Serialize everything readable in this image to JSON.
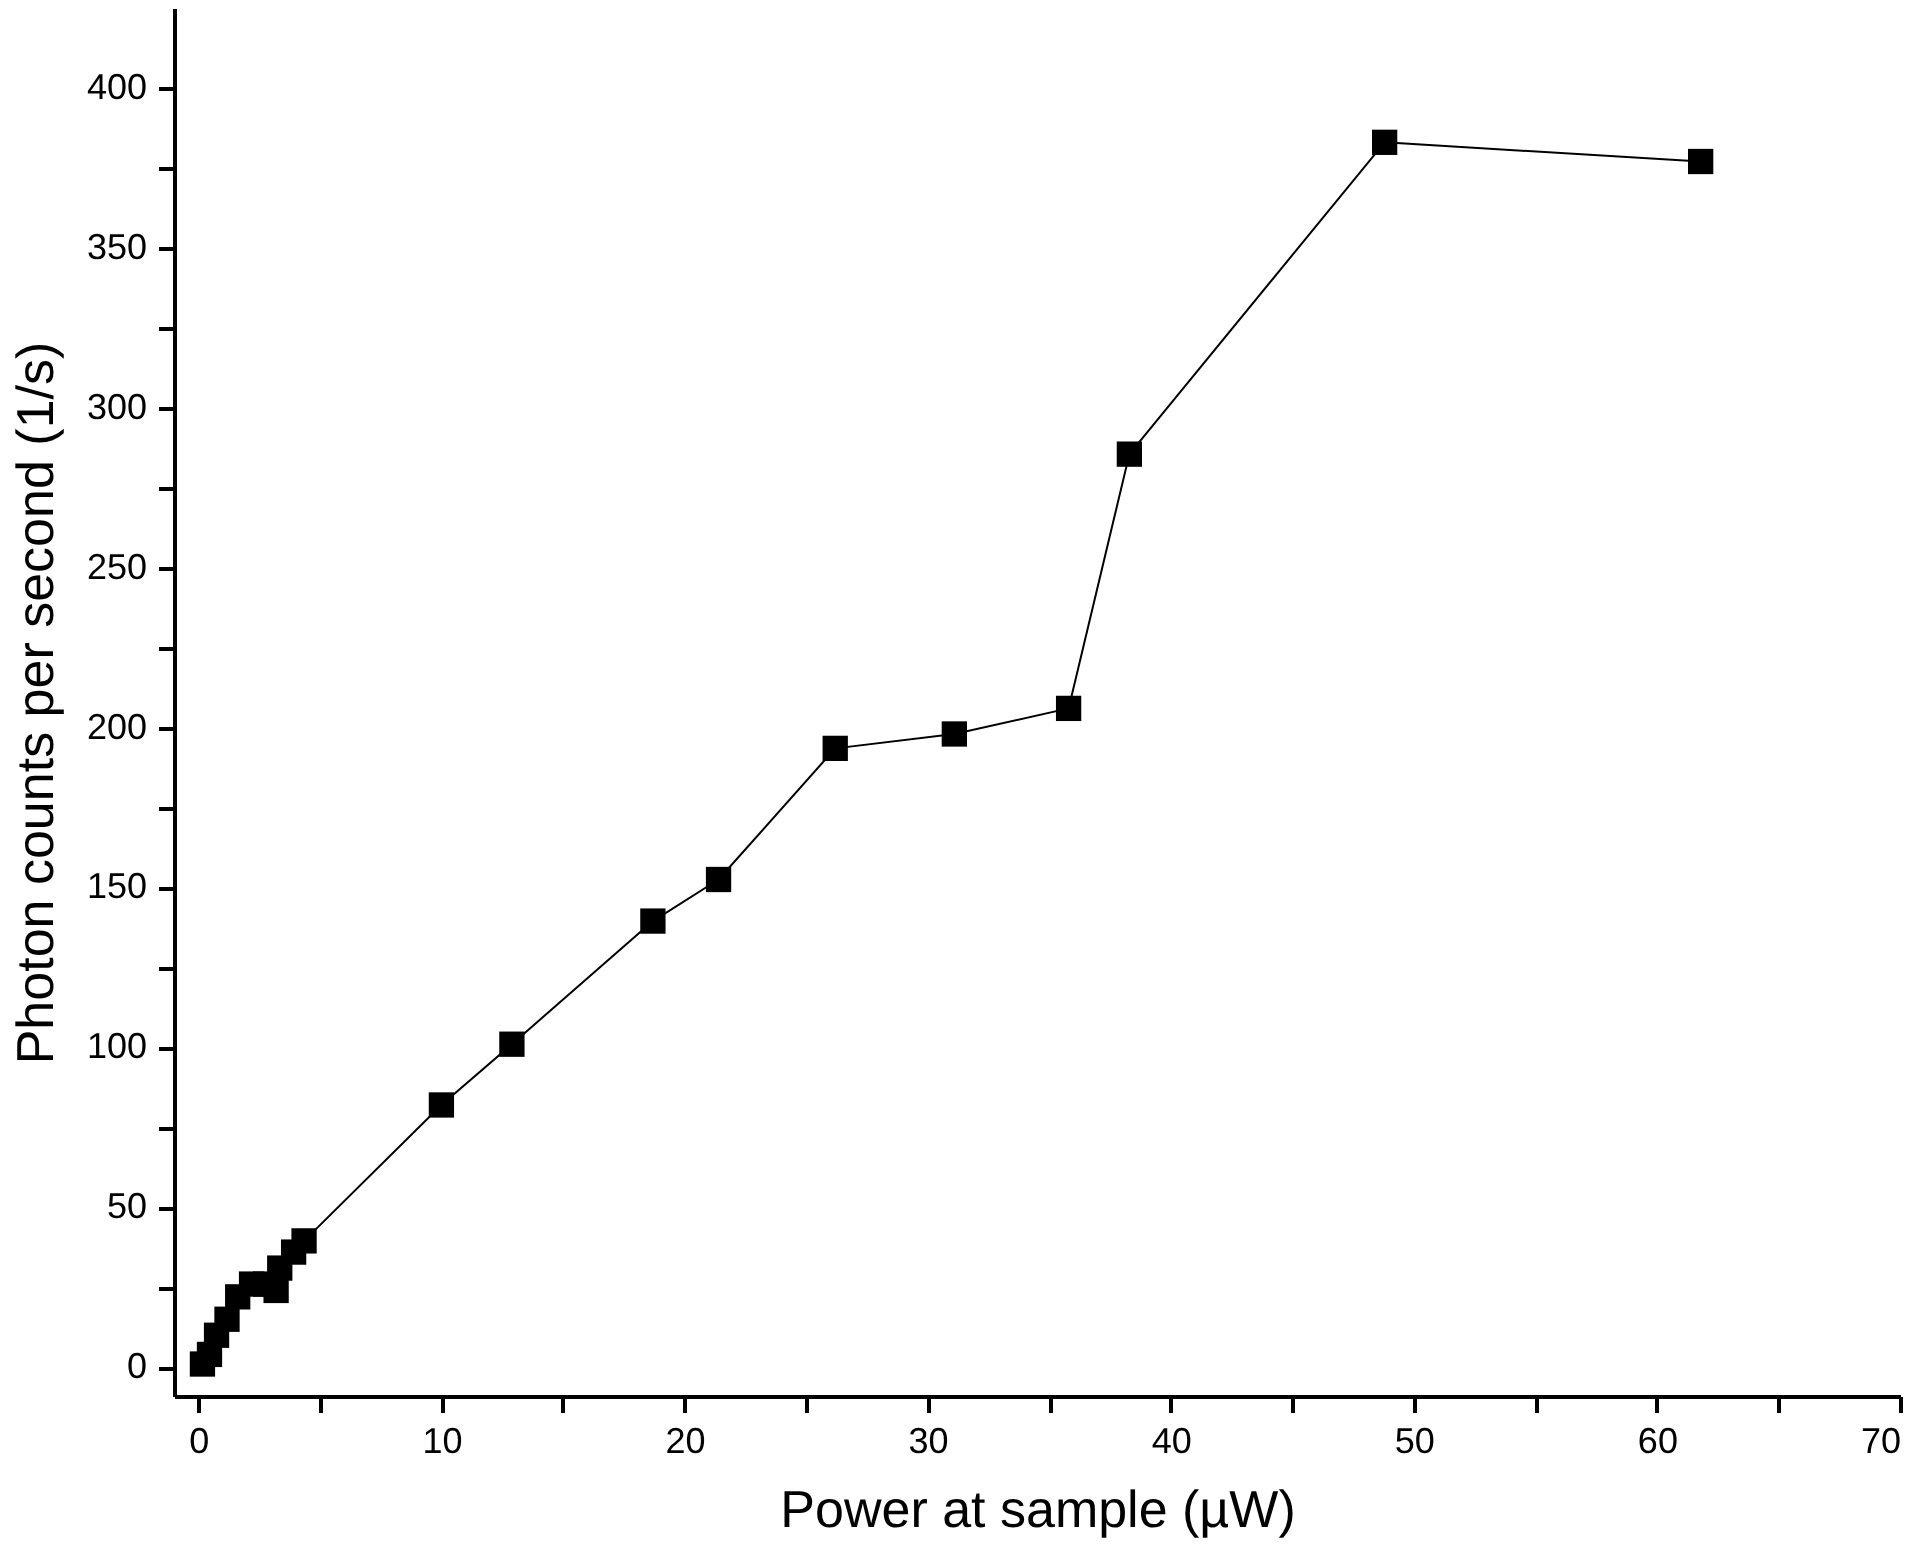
{
  "chart_data": {
    "type": "line",
    "xlabel": "Power at sample (µW)",
    "ylabel": "Photon counts per second (1/s)",
    "x": [
      0.17,
      0.46,
      0.75,
      1.18,
      1.62,
      2.19,
      2.77,
      3.2,
      3.35,
      3.92,
      4.35,
      10,
      12.9,
      18.7,
      21.4,
      26.2,
      31.1,
      35.8,
      38.3,
      48.8,
      61.8
    ],
    "series": [
      {
        "color": "#000000",
        "values": [
          1,
          4,
          10,
          15,
          22,
          26,
          26,
          24,
          31,
          36,
          39.5,
          82,
          101,
          139.5,
          152.5,
          193.5,
          198,
          206,
          285.5,
          383,
          377
        ]
      }
    ],
    "marker": "square",
    "line_style": "solid",
    "grid": false,
    "xlim": [
      -1,
      70
    ],
    "ylim": [
      -9,
      425
    ],
    "xticks": [
      0,
      {
        "value": 5,
        "label": null
      },
      10,
      {
        "value": 15,
        "label": null
      },
      20,
      {
        "value": 25,
        "label": null
      },
      30,
      {
        "value": 35,
        "label": null
      },
      40,
      {
        "value": 45,
        "label": null
      },
      50,
      {
        "value": 55,
        "label": null
      },
      60,
      {
        "value": 65,
        "label": null
      },
      70
    ],
    "yticks": [
      0,
      {
        "value": 25,
        "label": null
      },
      50,
      {
        "value": 75,
        "label": null
      },
      100,
      {
        "value": 125,
        "label": null
      },
      150,
      {
        "value": 175,
        "label": null
      },
      200,
      {
        "value": 225,
        "label": null
      },
      250,
      {
        "value": 275,
        "label": null
      },
      300,
      {
        "value": 325,
        "label": null
      },
      350,
      {
        "value": 375,
        "label": null
      },
      400
    ]
  }
}
